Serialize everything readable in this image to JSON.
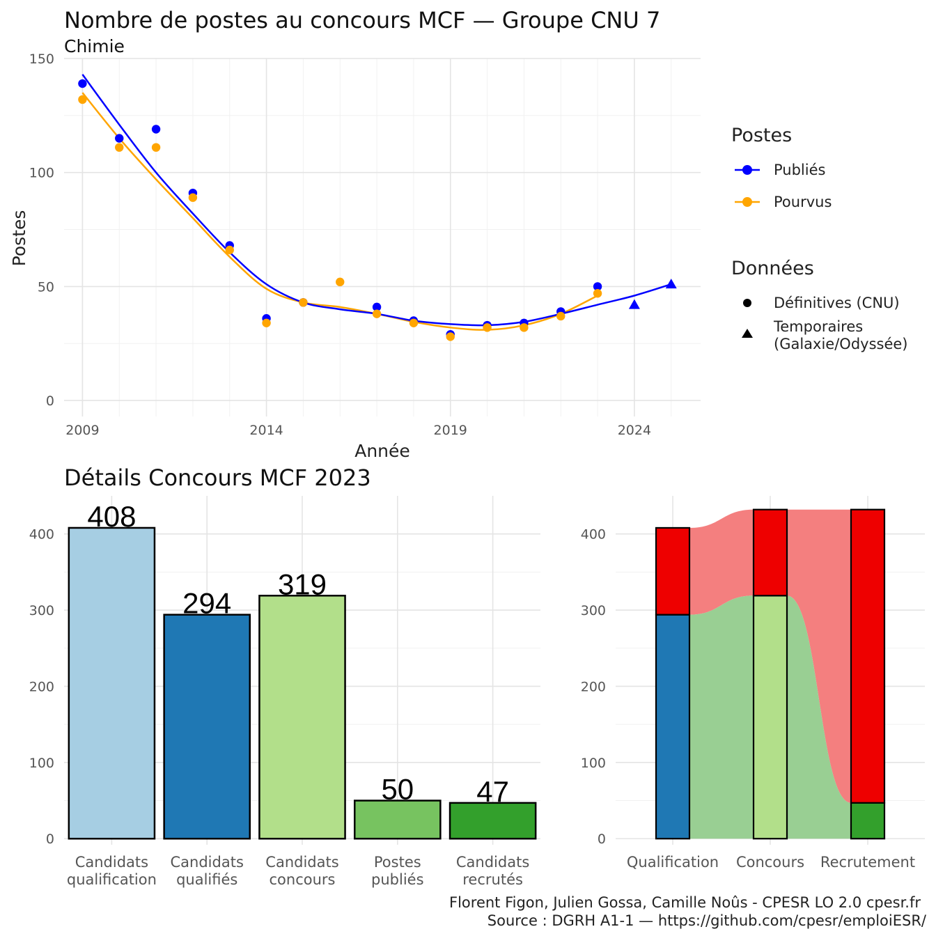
{
  "header": {
    "title": "Nombre de postes au concours MCF —  Groupe CNU 7",
    "subtitle": "Chimie"
  },
  "bottom_title": "Détails Concours MCF 2023",
  "caption": {
    "line1": "Florent Figon, Julien Gossa, Camille Noûs - CPESR LO 2.0 cpesr.fr",
    "line2": "Source : DGRH A1-1 — https://github.com/cpesr/emploiESR/"
  },
  "legend": {
    "postes_title": "Postes",
    "publies_label": "Publiés",
    "pourvus_label": "Pourvus",
    "donnees_title": "Données",
    "definitives_label": "Définitives (CNU)",
    "temporaires_line1": "Temporaires",
    "temporaires_line2": "(Galaxie/Odyssée)"
  },
  "colors": {
    "publies": "#0000ff",
    "pourvus": "#ffa500",
    "bars": [
      "#a6cee3",
      "#1f78b4",
      "#b2df8a",
      "#77c360",
      "#33a02c"
    ],
    "red": "#ee0000",
    "flow_red": "#f47f7f",
    "flow_green": "#99cf93"
  },
  "chart_data": [
    {
      "type": "line",
      "xlabel": "Année",
      "ylabel": "Postes",
      "xlim": [
        2008.5,
        2025.8
      ],
      "ylim": [
        -7,
        150
      ],
      "x_ticks": [
        2009,
        2014,
        2019,
        2024
      ],
      "y_ticks": [
        0,
        50,
        100,
        150
      ],
      "grid": true,
      "legend_position": "right",
      "series": [
        {
          "name": "Publiés",
          "points": [
            [
              2009,
              139
            ],
            [
              2010,
              115
            ],
            [
              2011,
              119
            ],
            [
              2012,
              91
            ],
            [
              2013,
              68
            ],
            [
              2014,
              36
            ],
            [
              2015,
              43
            ],
            [
              2017,
              41
            ],
            [
              2018,
              35
            ],
            [
              2019,
              29
            ],
            [
              2020,
              33
            ],
            [
              2021,
              34
            ],
            [
              2022,
              39
            ],
            [
              2023,
              50
            ]
          ],
          "temporary_points": [
            [
              2024,
              42
            ],
            [
              2025,
              51
            ]
          ],
          "smooth": [
            [
              2009,
              143
            ],
            [
              2010,
              121
            ],
            [
              2011,
              100
            ],
            [
              2012,
              82
            ],
            [
              2013,
              65
            ],
            [
              2014,
              51
            ],
            [
              2015,
              43
            ],
            [
              2016,
              40
            ],
            [
              2017,
              38
            ],
            [
              2018,
              35
            ],
            [
              2019,
              33.5
            ],
            [
              2020,
              33
            ],
            [
              2021,
              34.5
            ],
            [
              2022,
              38
            ],
            [
              2023,
              42
            ],
            [
              2024,
              46
            ],
            [
              2025,
              51
            ]
          ]
        },
        {
          "name": "Pourvus",
          "points": [
            [
              2009,
              132
            ],
            [
              2010,
              111
            ],
            [
              2011,
              111
            ],
            [
              2012,
              89
            ],
            [
              2013,
              66
            ],
            [
              2014,
              34
            ],
            [
              2015,
              43
            ],
            [
              2016,
              52
            ],
            [
              2017,
              38
            ],
            [
              2018,
              34
            ],
            [
              2019,
              28
            ],
            [
              2020,
              32
            ],
            [
              2021,
              32
            ],
            [
              2022,
              37
            ],
            [
              2023,
              47
            ]
          ],
          "smooth": [
            [
              2009,
              135
            ],
            [
              2010,
              115
            ],
            [
              2011,
              97
            ],
            [
              2012,
              80
            ],
            [
              2013,
              63
            ],
            [
              2014,
              49
            ],
            [
              2015,
              43
            ],
            [
              2016,
              41
            ],
            [
              2017,
              38
            ],
            [
              2018,
              34.5
            ],
            [
              2019,
              32
            ],
            [
              2020,
              31
            ],
            [
              2021,
              33
            ],
            [
              2022,
              38
            ],
            [
              2023,
              46
            ]
          ]
        }
      ]
    },
    {
      "type": "bar",
      "categories": [
        "Candidats\nqualification",
        "Candidats\nqualifiés",
        "Candidats\nconcours",
        "Postes\npubliés",
        "Candidats\nrecrutés"
      ],
      "values": [
        408,
        294,
        319,
        50,
        47
      ],
      "y_ticks": [
        0,
        100,
        200,
        300,
        400
      ],
      "ylim": [
        -8,
        450
      ],
      "grid": true
    },
    {
      "type": "bar",
      "subtype": "stacked-alluvial",
      "categories": [
        "Qualification",
        "Concours",
        "Recrutement"
      ],
      "stacks": [
        {
          "bottom": 294,
          "top": 408
        },
        {
          "bottom": 319,
          "top": 432
        },
        {
          "bottom": 47,
          "top": 432
        }
      ],
      "y_ticks": [
        0,
        100,
        200,
        300,
        400
      ],
      "ylim": [
        -8,
        450
      ],
      "grid": true
    }
  ]
}
